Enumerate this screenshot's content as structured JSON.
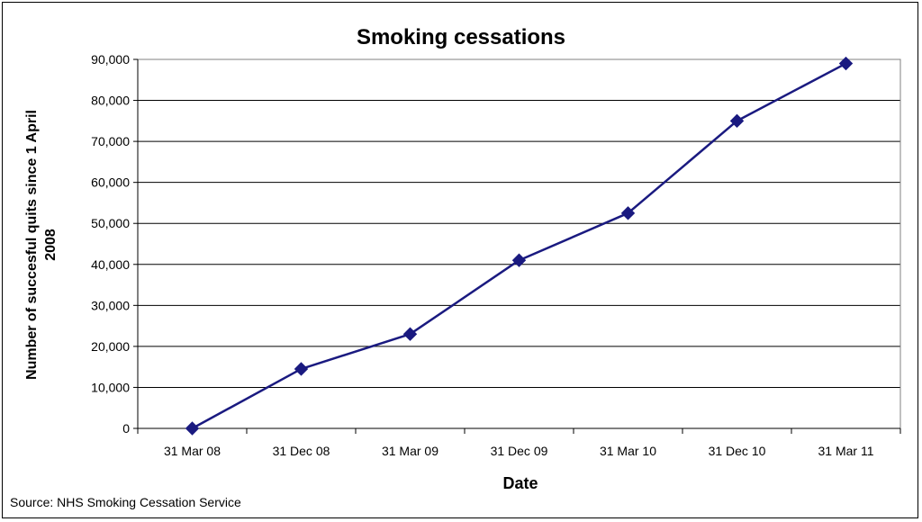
{
  "chart_data": {
    "type": "line",
    "title": "Smoking cessations",
    "xlabel": "Date",
    "ylabel": "Number of succesful quits since 1 April 2008",
    "categories": [
      "31 Mar 08",
      "31 Dec 08",
      "31 Mar 09",
      "31 Dec 09",
      "31 Mar 10",
      "31 Dec 10",
      "31 Mar 11"
    ],
    "series": [
      {
        "values": [
          0,
          14500,
          23000,
          41000,
          52500,
          75000,
          89000
        ]
      }
    ],
    "ylim": [
      0,
      90000
    ],
    "yticks": [
      0,
      10000,
      20000,
      30000,
      40000,
      50000,
      60000,
      70000,
      80000,
      90000
    ],
    "ytick_labels": [
      "0",
      "10,000",
      "20,000",
      "30,000",
      "40,000",
      "50,000",
      "60,000",
      "70,000",
      "80,000",
      "90,000"
    ],
    "grid": true,
    "legend": "none",
    "line_color": "#1a1a80",
    "marker": "diamond"
  },
  "source": "Source: NHS Smoking Cessation Service"
}
